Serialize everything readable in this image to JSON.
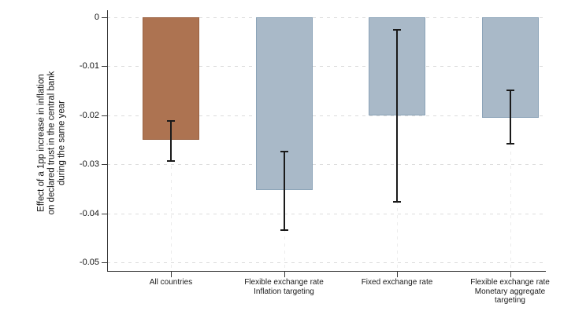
{
  "chart_data": {
    "type": "bar",
    "title": "",
    "ylabel_lines": [
      "Effect of a 1pp increase in inflation",
      "on declared trust in the central bank",
      "during the same year"
    ],
    "categories": [
      "All countries",
      "Flexible exchange rate\nInflation targeting",
      "Fixed exchange rate",
      "Flexible exchange rate\nMonetary aggregate\ntargeting"
    ],
    "values": [
      -0.025,
      -0.0353,
      -0.02,
      -0.0205
    ],
    "ci_upper": [
      -0.0212,
      -0.0274,
      -0.0025,
      -0.0149
    ],
    "ci_lower": [
      -0.0293,
      -0.0434,
      -0.0376,
      -0.0258
    ],
    "ytick_labels": [
      "0",
      "-0.01",
      "-0.02",
      "-0.03",
      "-0.04",
      "-0.05"
    ],
    "yticks": [
      0,
      -0.01,
      -0.02,
      -0.03,
      -0.04,
      -0.05
    ],
    "ylim": [
      0,
      -0.05
    ],
    "xlabel": "",
    "legend": "none",
    "grid": {
      "horizontal": "dashed",
      "vertical_at_categories": "dashed-faint",
      "h_color": "#dcdcdc",
      "v_color": "#ececec"
    },
    "bar_colors": [
      "#ad7351",
      "#a9b9c8",
      "#a9b9c8",
      "#a9b9c8"
    ],
    "bar_border_colors": [
      "#9a6242",
      "#8ba3b8",
      "#8ba3b8",
      "#8ba3b8"
    ],
    "error_bar_color": "#1a1a1a",
    "axis_color": "#383838"
  }
}
